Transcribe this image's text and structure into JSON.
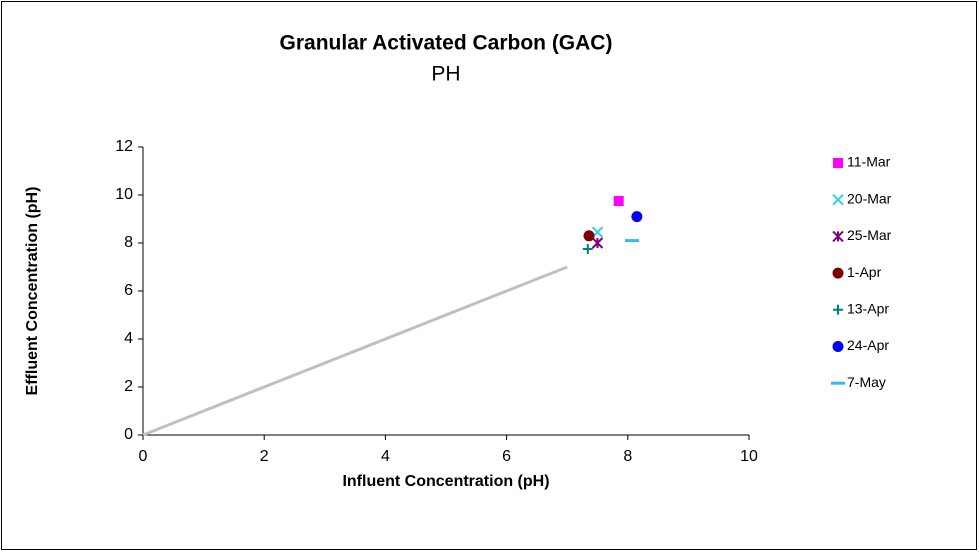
{
  "chart_data": {
    "type": "scatter",
    "title": "Granular Activated Carbon (GAC)",
    "subtitle": "PH",
    "x_label": "Influent Concentration (pH)",
    "y_label": "Effluent Concentration (pH)",
    "xlim": [
      0,
      10
    ],
    "xticks": [
      0,
      2,
      4,
      6,
      8,
      10
    ],
    "ylim": [
      0,
      12
    ],
    "yticks": [
      0,
      2,
      4,
      6,
      8,
      10,
      12
    ],
    "grid": false,
    "legend": "right",
    "line": {
      "color": "#c0c0c0",
      "x": [
        0,
        7
      ],
      "y": [
        0,
        7
      ]
    },
    "series": [
      {
        "name": "11-Mar",
        "color": "#ff00ff",
        "marker": "square",
        "x": [
          7.85
        ],
        "values": [
          9.75
        ]
      },
      {
        "name": "20-Mar",
        "color": "#33ccee",
        "marker": "x",
        "x": [
          7.5
        ],
        "values": [
          8.45
        ]
      },
      {
        "name": "25-Mar",
        "color": "#800080",
        "marker": "star",
        "x": [
          7.5
        ],
        "values": [
          8.0
        ]
      },
      {
        "name": "1-Apr",
        "color": "#800000",
        "marker": "circle",
        "x": [
          7.36
        ],
        "values": [
          8.3
        ]
      },
      {
        "name": "13-Apr",
        "color": "#008080",
        "marker": "plus",
        "x": [
          7.34
        ],
        "values": [
          7.75
        ]
      },
      {
        "name": "24-Apr",
        "color": "#0000ff",
        "marker": "circle",
        "x": [
          8.15
        ],
        "values": [
          9.1
        ]
      },
      {
        "name": "7-May",
        "color": "#33bbee",
        "marker": "dash",
        "x": [
          8.07
        ],
        "values": [
          8.1
        ]
      }
    ]
  }
}
